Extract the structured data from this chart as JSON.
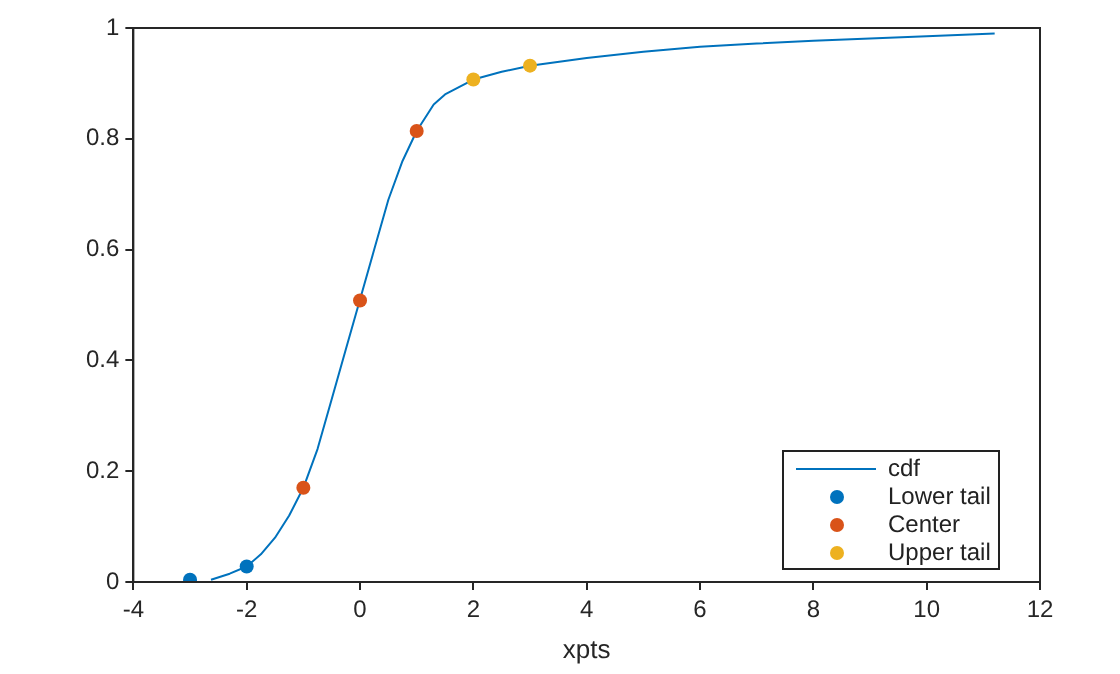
{
  "chart_data": {
    "type": "line",
    "xlabel": "xpts",
    "xlim": [
      -4,
      12
    ],
    "xticks": [
      -4,
      -2,
      0,
      2,
      4,
      6,
      8,
      10,
      12
    ],
    "ylim": [
      0,
      1
    ],
    "yticks": [
      0,
      0.2,
      0.4,
      0.6,
      0.8,
      1
    ],
    "grid": false,
    "legend": "bottom right",
    "series": [
      {
        "name": "cdf",
        "type": "line",
        "color": "#0072bd",
        "marker": "none",
        "line_style": "solid",
        "x": [
          -2.63,
          -2.3,
          -2,
          -1.75,
          -1.5,
          -1.25,
          -1,
          -0.75,
          -0.5,
          -0.25,
          0,
          0.25,
          0.5,
          0.75,
          1,
          1.3,
          1.5,
          2,
          2.5,
          3,
          4,
          5,
          6,
          7,
          8,
          9,
          10,
          11.2
        ],
        "values": [
          0.004,
          0.015,
          0.028,
          0.05,
          0.08,
          0.12,
          0.17,
          0.24,
          0.33,
          0.42,
          0.51,
          0.6,
          0.69,
          0.76,
          0.814,
          0.862,
          0.88,
          0.907,
          0.921,
          0.932,
          0.946,
          0.957,
          0.966,
          0.972,
          0.977,
          0.981,
          0.985,
          0.99
        ]
      },
      {
        "name": "Lower tail",
        "type": "scatter",
        "color": "#0072bd",
        "marker": "circle",
        "x": [
          -3,
          -2
        ],
        "values": [
          0.004,
          0.028
        ]
      },
      {
        "name": "Center",
        "type": "scatter",
        "color": "#d95319",
        "marker": "circle",
        "x": [
          -1,
          0,
          1
        ],
        "values": [
          0.17,
          0.508,
          0.814
        ]
      },
      {
        "name": "Upper tail",
        "type": "scatter",
        "color": "#edb120",
        "marker": "circle",
        "x": [
          2,
          3
        ],
        "values": [
          0.907,
          0.932
        ]
      }
    ]
  }
}
